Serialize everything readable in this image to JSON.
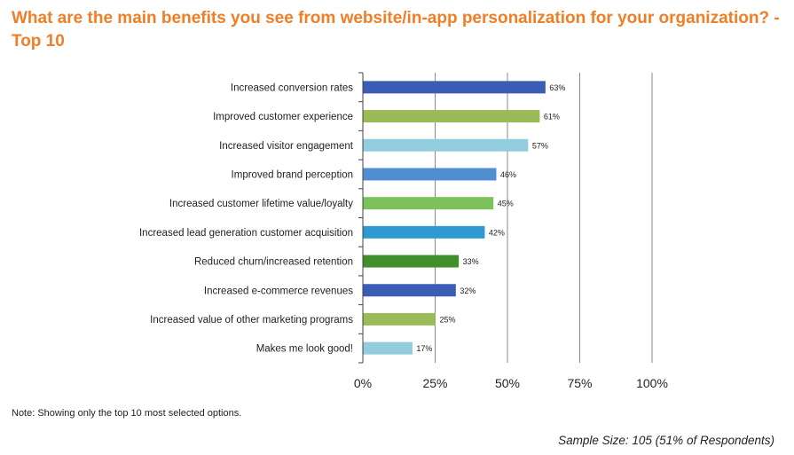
{
  "title": "What are the main benefits you see from website/in-app personalization for your organization? - Top 10",
  "note": "Note: Showing only the top 10 most selected options.",
  "sample_size": "Sample Size: 105 (51% of Respondents)",
  "chart_data": {
    "type": "bar",
    "orientation": "horizontal",
    "categories": [
      "Increased conversion rates",
      "Improved customer experience",
      "Increased visitor engagement",
      "Improved brand perception",
      "Increased customer lifetime value/loyalty",
      "Increased lead generation customer acquisition",
      "Reduced churn/increased retention",
      "Increased e-commerce revenues",
      "Increased value of other marketing programs",
      "Makes me look good!"
    ],
    "values": [
      63,
      61,
      57,
      46,
      45,
      42,
      33,
      32,
      25,
      17
    ],
    "value_labels": [
      "63%",
      "61%",
      "57%",
      "46%",
      "45%",
      "42%",
      "33%",
      "32%",
      "25%",
      "17%"
    ],
    "bar_colors": [
      "#3A5DB5",
      "#9BBB59",
      "#93CDDD",
      "#4F8FD0",
      "#7CC15A",
      "#2E9AD0",
      "#3F8F2A",
      "#3A5DB5",
      "#9BBB59",
      "#93CDDD"
    ],
    "xlim": [
      0,
      100
    ],
    "xticks": [
      "0%",
      "25%",
      "50%",
      "75%",
      "100%"
    ],
    "xtick_values": [
      0,
      25,
      50,
      75,
      100
    ],
    "grid": "vertical",
    "legend": "none"
  }
}
